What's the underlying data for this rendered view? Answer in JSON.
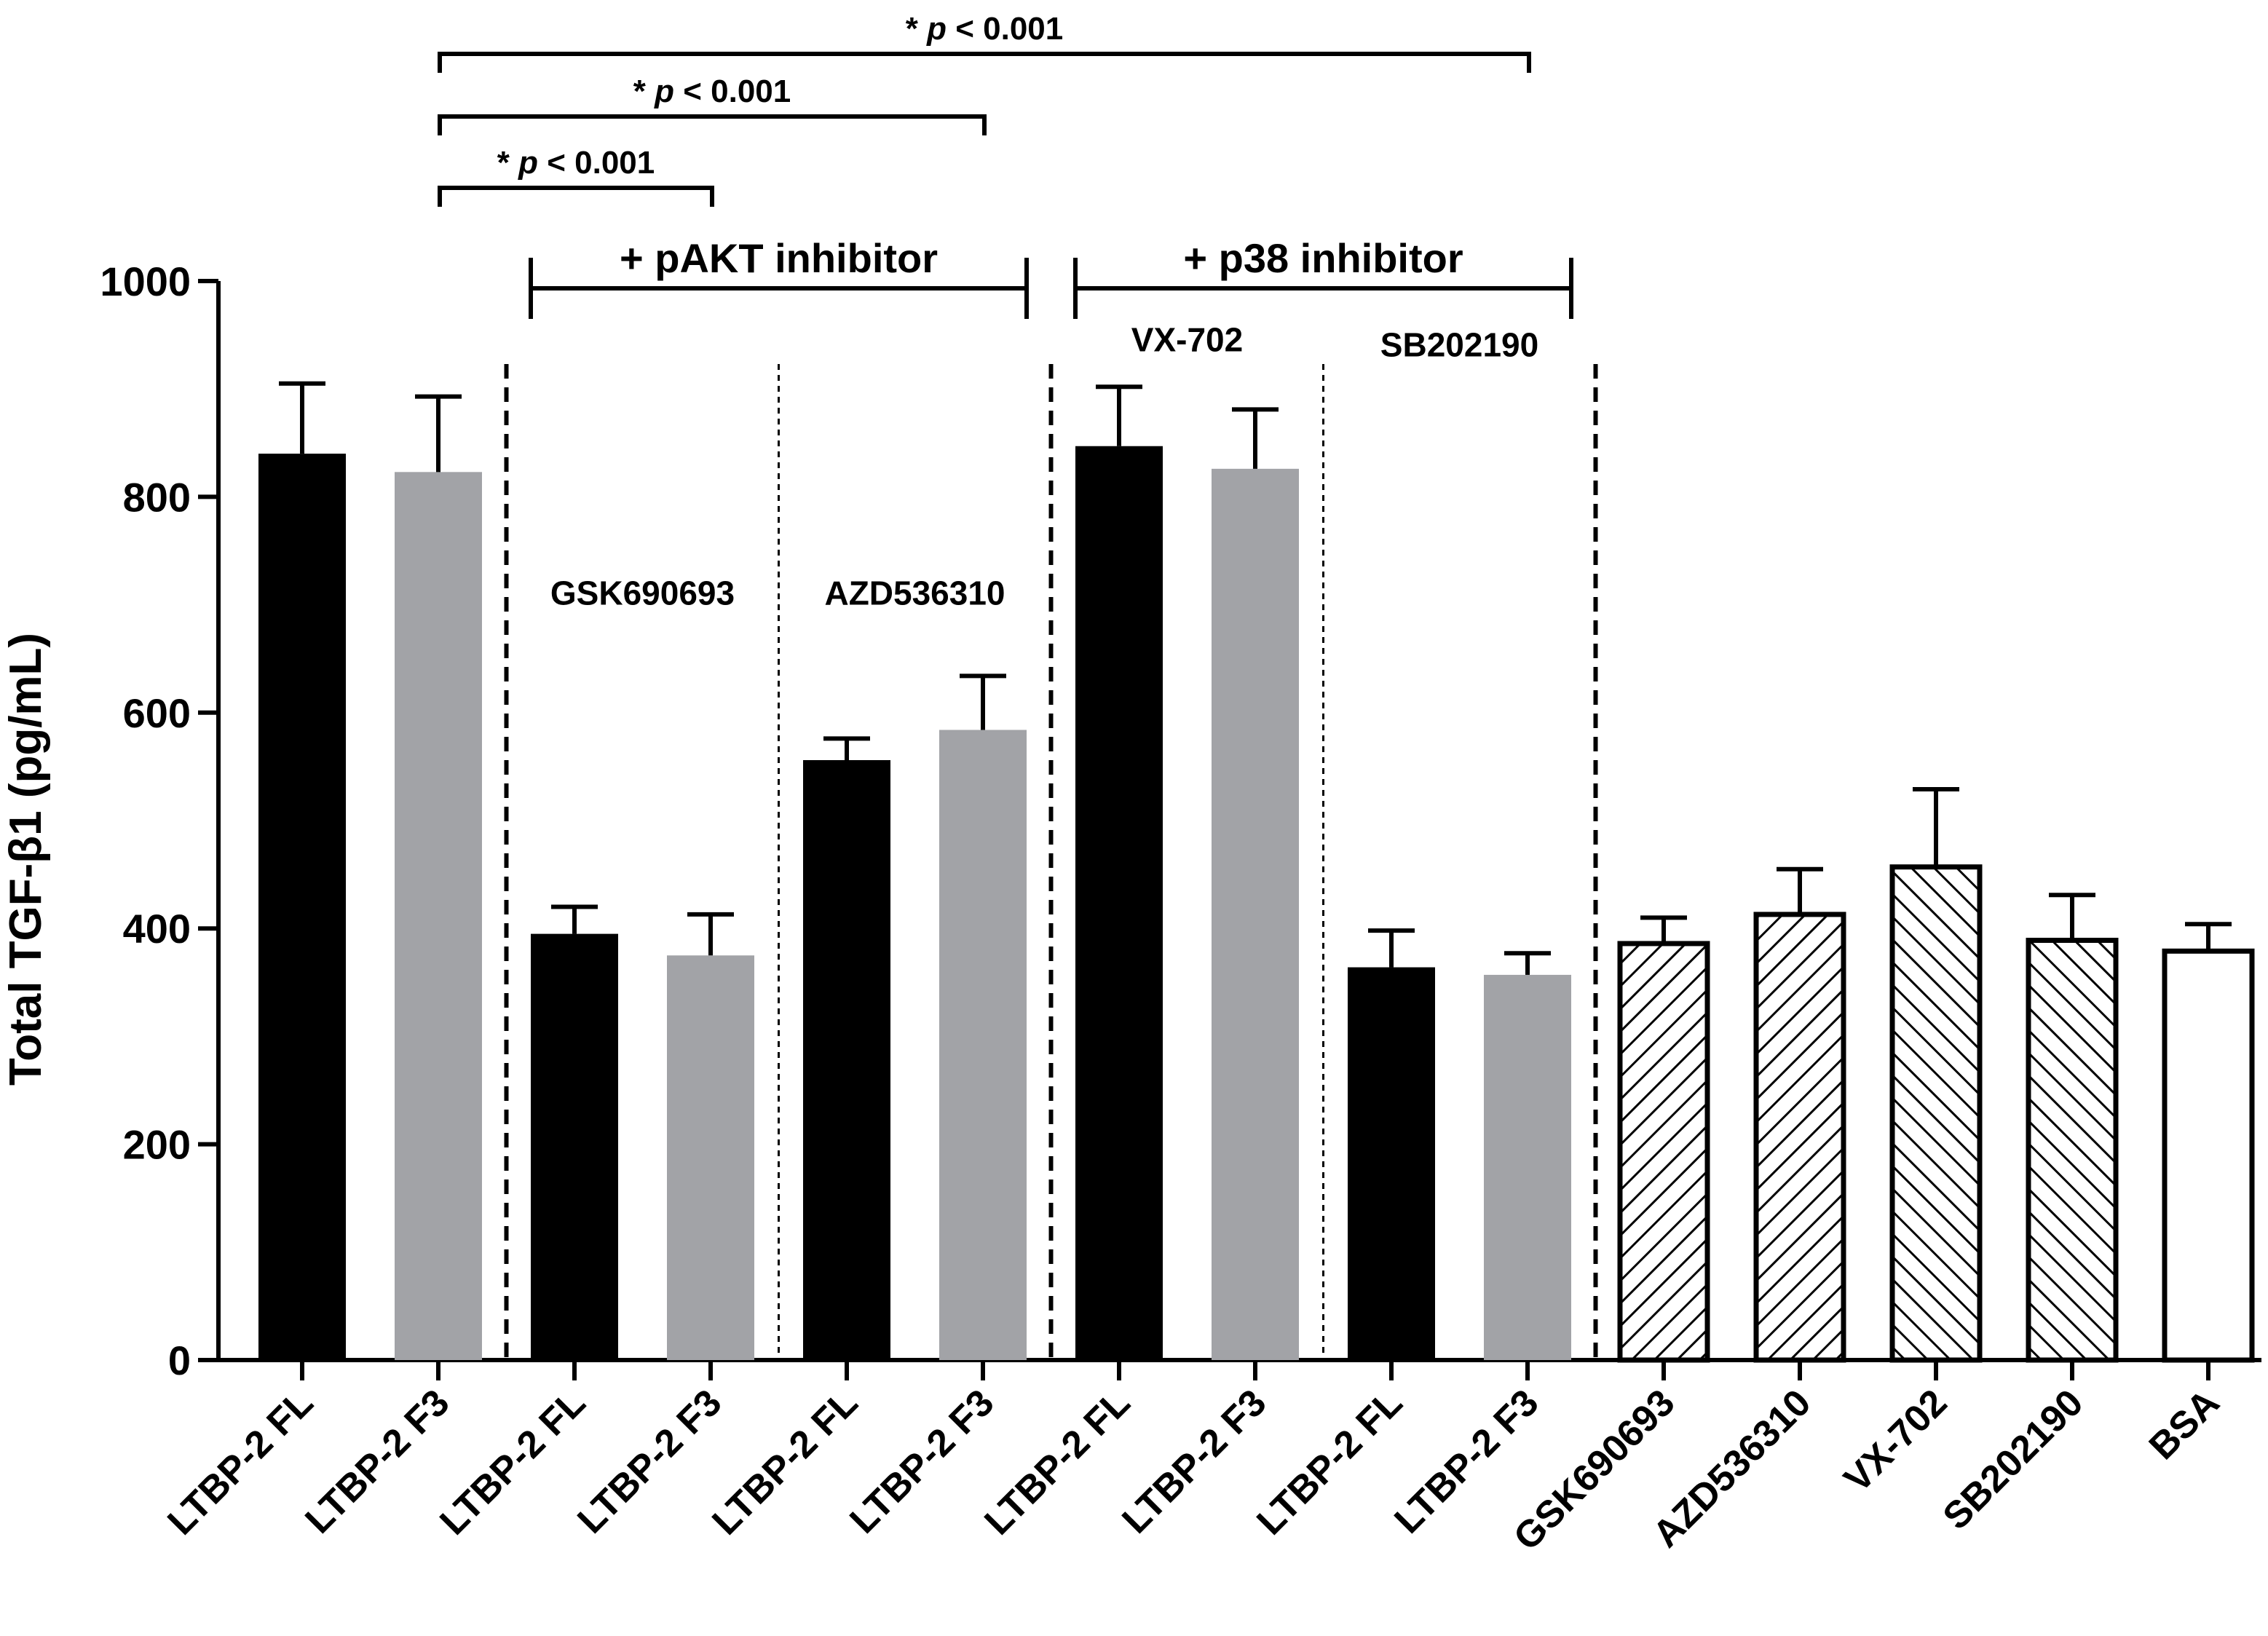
{
  "chart_data": {
    "type": "bar",
    "title": "",
    "xlabel": "",
    "ylabel": "Total TGF-β1 (pg/mL)",
    "ylim": [
      0,
      1000
    ],
    "yticks": [
      0,
      200,
      400,
      600,
      800,
      1000
    ],
    "grid": false,
    "categories": [
      "LTBP-2 FL",
      "LTBP-2 F3",
      "LTBP-2 FL",
      "LTBP-2 F3",
      "LTBP-2 FL",
      "LTBP-2 F3",
      "LTBP-2 FL",
      "LTBP-2 F3",
      "LTBP-2 FL",
      "LTBP-2 F3",
      "GSK690693",
      "AZD536310",
      "VX-702",
      "SB202190",
      "BSA"
    ],
    "values": [
      840,
      823,
      395,
      375,
      556,
      584,
      847,
      826,
      364,
      357,
      386,
      413,
      457,
      389,
      379
    ],
    "errors": [
      65,
      70,
      25,
      38,
      20,
      50,
      55,
      55,
      34,
      20,
      24,
      42,
      72,
      42,
      25
    ],
    "fill_styles": [
      "solid-black",
      "solid-gray",
      "solid-black",
      "solid-gray",
      "solid-black",
      "solid-gray",
      "solid-black",
      "solid-gray",
      "solid-black",
      "solid-gray",
      "hatch-forward",
      "hatch-forward",
      "hatch-back",
      "hatch-back",
      "white"
    ],
    "colors": {
      "black": "#000000",
      "gray": "#a2a3a7",
      "white": "#ffffff"
    },
    "group_labels": [
      {
        "text": "+ pAKT inhibitor",
        "from": 2,
        "to": 5
      },
      {
        "text": "+ p38 inhibitor",
        "from": 6,
        "to": 9
      }
    ],
    "sub_labels": [
      {
        "text": "GSK690693",
        "over": 2,
        "y": 700
      },
      {
        "text": "AZD536310",
        "over": 4,
        "y": 700
      },
      {
        "text": "VX-702",
        "over": 6,
        "y": 935
      },
      {
        "text": "SB202190",
        "over": 8,
        "y": 930
      }
    ],
    "separators": [
      {
        "after": 1,
        "style": "thick-dashed"
      },
      {
        "after": 3,
        "style": "thin-dotted"
      },
      {
        "after": 5,
        "style": "thick-dashed"
      },
      {
        "after": 7,
        "style": "thin-dotted"
      },
      {
        "after": 9,
        "style": "thick-dashed"
      }
    ],
    "significance": [
      {
        "label_prefix": "* ",
        "label_italic": "p",
        "label_suffix": " < 0.001",
        "from": 1,
        "to": 3,
        "level": 1
      },
      {
        "label_prefix": "* ",
        "label_italic": "p",
        "label_suffix": " < 0.001",
        "from": 1,
        "to": 5,
        "level": 2
      },
      {
        "label_prefix": "* ",
        "label_italic": "p",
        "label_suffix": " < 0.001",
        "from": 1,
        "to": 9,
        "level": 3
      }
    ]
  }
}
